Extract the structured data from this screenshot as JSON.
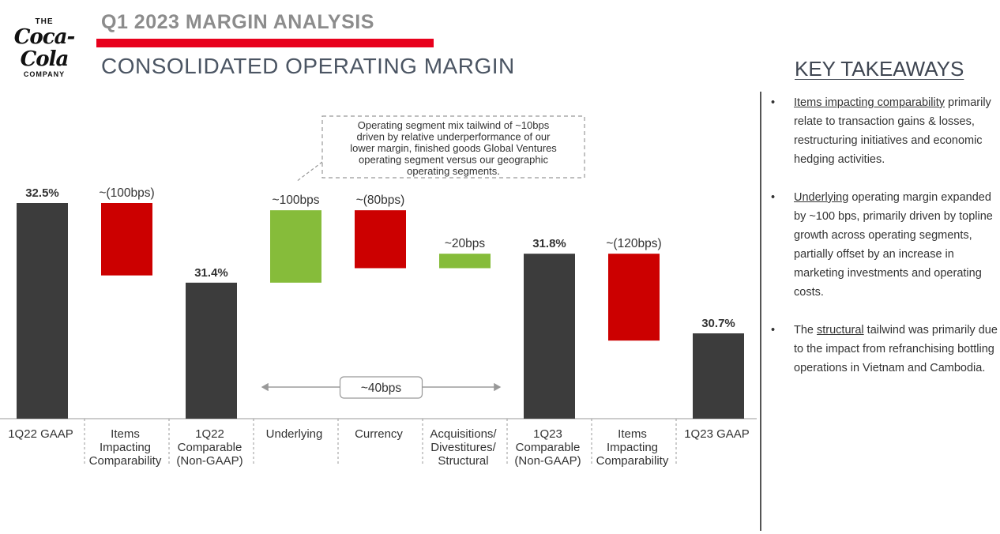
{
  "logo": {
    "top": "THE",
    "script": "Coca-Cola",
    "bottom": "COMPANY"
  },
  "header": {
    "title": "Q1 2023 MARGIN ANALYSIS",
    "subtitle": "CONSOLIDATED OPERATING MARGIN",
    "accent_color": "#e8001c"
  },
  "chart_data": {
    "type": "bar",
    "subtype": "waterfall",
    "title": "",
    "xlabel": "",
    "ylabel": "",
    "unit": "%",
    "categories": [
      [
        "1Q22 GAAP"
      ],
      [
        "Items",
        "Impacting",
        "Comparability"
      ],
      [
        "1Q22",
        "Comparable",
        "(Non-GAAP)"
      ],
      [
        "Underlying"
      ],
      [
        "Currency"
      ],
      [
        "Acquisitions/",
        "Divestitures/",
        "Structural"
      ],
      [
        "1Q23",
        "Comparable",
        "(Non-GAAP)"
      ],
      [
        "Items",
        "Impacting",
        "Comparability"
      ],
      [
        "1Q23 GAAP"
      ]
    ],
    "bars": [
      {
        "kind": "total",
        "start": 0,
        "end": 32.5,
        "label": "32.5%",
        "color": "#3c3c3c"
      },
      {
        "kind": "decrease",
        "start": 32.5,
        "end": 31.5,
        "label": "~(100bps)",
        "color": "#cc0000"
      },
      {
        "kind": "total",
        "start": 0,
        "end": 31.4,
        "label": "31.4%",
        "color": "#3c3c3c"
      },
      {
        "kind": "increase",
        "start": 31.4,
        "end": 32.4,
        "label": "~100bps",
        "color": "#86bc3a"
      },
      {
        "kind": "decrease",
        "start": 32.4,
        "end": 31.6,
        "label": "~(80bps)",
        "color": "#cc0000"
      },
      {
        "kind": "increase",
        "start": 31.6,
        "end": 31.8,
        "label": "~20bps",
        "color": "#86bc3a"
      },
      {
        "kind": "total",
        "start": 0,
        "end": 31.8,
        "label": "31.8%",
        "color": "#3c3c3c"
      },
      {
        "kind": "decrease",
        "start": 31.8,
        "end": 30.6,
        "label": "~(120bps)",
        "color": "#cc0000"
      },
      {
        "kind": "total",
        "start": 0,
        "end": 30.7,
        "label": "30.7%",
        "color": "#3c3c3c"
      }
    ],
    "bracket": {
      "from_index": 3,
      "to_index": 5,
      "label": "~40bps"
    },
    "callout": {
      "attached_index": 3,
      "lines": [
        "Operating segment mix tailwind of ~10bps",
        "driven by relative underperformance of our",
        "lower margin, finished goods Global Ventures",
        "operating segment versus our geographic",
        "operating segments."
      ]
    }
  },
  "takeaways": {
    "title": "KEY TAKEAWAYS",
    "items": [
      {
        "bullet": "•",
        "pre": "",
        "underlined": "Items impacting comparability",
        "post": " primarily relate to transaction gains & losses, restructuring initiatives and economic hedging activities."
      },
      {
        "bullet": "•",
        "pre": "",
        "underlined": "Underlying",
        "post": " operating margin expanded by ~100 bps, primarily driven by topline growth across operating segments, partially offset by an increase in marketing investments and operating costs."
      },
      {
        "bullet": "•",
        "pre": "The ",
        "underlined": "structural",
        "post": " tailwind was primarily due to the impact from refranchising bottling operations in Vietnam and Cambodia."
      }
    ]
  }
}
